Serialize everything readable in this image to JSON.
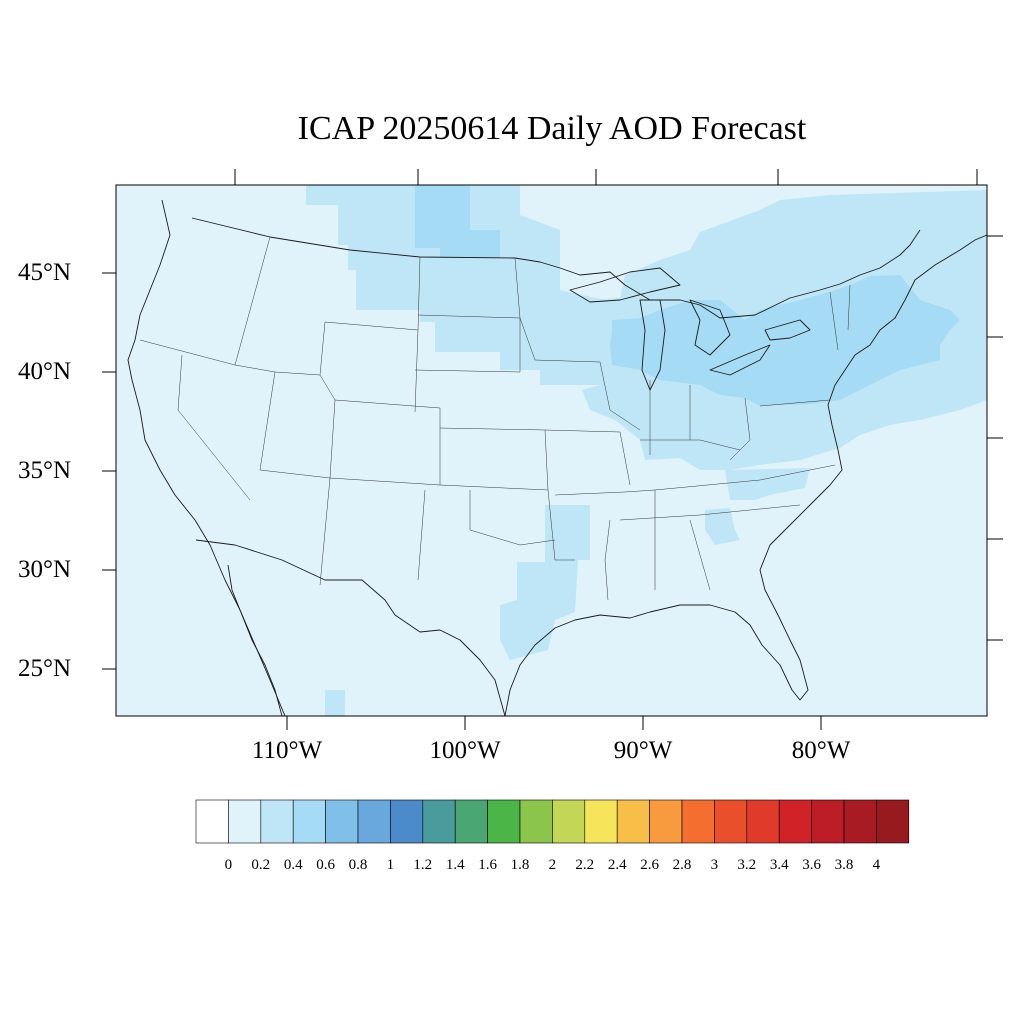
{
  "title": "ICAP 20250614 Daily AOD Forecast",
  "map": {
    "region": "contiguous-united-states",
    "latitude_labels": [
      "45°N",
      "40°N",
      "35°N",
      "30°N",
      "25°N"
    ],
    "longitude_labels": [
      "110°W",
      "100°W",
      "90°W",
      "80°W"
    ],
    "background_fill": "#e0f3fb",
    "aod_levels": {
      "0-0.2": "#e0f3fb",
      "0.2-0.4": "#bfe6f7",
      "0.4-0.6": "#a5dbf4"
    }
  },
  "colorbar": {
    "labels": [
      "0",
      "0.2",
      "0.4",
      "0.6",
      "0.8",
      "1",
      "1.2",
      "1.4",
      "1.6",
      "1.8",
      "2",
      "2.2",
      "2.4",
      "2.6",
      "2.8",
      "3",
      "3.2",
      "3.4",
      "3.6",
      "3.8",
      "4"
    ],
    "colors": [
      "#ffffff",
      "#e0f3fb",
      "#bfe6f7",
      "#a5dbf4",
      "#80c0e8",
      "#68a8dc",
      "#4b8bcb",
      "#4a9b9c",
      "#4aa673",
      "#4bb548",
      "#8bc54b",
      "#c4d655",
      "#f6e55a",
      "#f7be48",
      "#f79b3e",
      "#f36e2f",
      "#ea4f2c",
      "#e03a2a",
      "#d12228",
      "#bd1d26",
      "#a81b22",
      "#961a1e"
    ]
  }
}
